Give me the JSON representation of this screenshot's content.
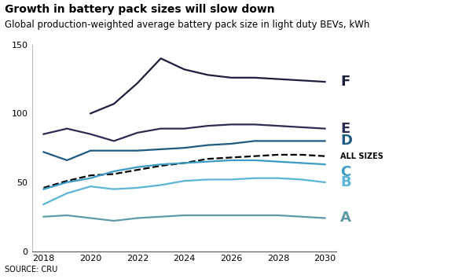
{
  "chart_data": {
    "type": "line",
    "title": "Growth in battery pack sizes will slow down",
    "subtitle": "Global production-weighted average battery pack size in light duty BEVs, kWh",
    "source": "SOURCE: CRU",
    "x": [
      2018,
      2019,
      2020,
      2021,
      2022,
      2023,
      2024,
      2025,
      2026,
      2027,
      2028,
      2029,
      2030
    ],
    "xlim": [
      2017.5,
      2030.5
    ],
    "xticks": [
      2018,
      2020,
      2022,
      2024,
      2026,
      2028,
      2030
    ],
    "ylim": [
      0,
      150
    ],
    "yticks": [
      0,
      50,
      100,
      150
    ],
    "grid": false,
    "series": [
      {
        "name": "F",
        "color": "#1c1f3b",
        "line_style": "solid",
        "values": [
          null,
          null,
          100,
          107,
          122,
          140,
          132,
          128,
          126,
          126,
          125,
          124,
          123
        ]
      },
      {
        "name": "E",
        "color": "#2b2d52",
        "line_style": "solid",
        "values": [
          85,
          89,
          85,
          80,
          86,
          89,
          89,
          91,
          92,
          92,
          91,
          90,
          89
        ]
      },
      {
        "name": "D",
        "color": "#1f5a80",
        "line_style": "solid",
        "values": [
          72,
          66,
          73,
          73,
          73,
          74,
          75,
          77,
          78,
          80,
          80,
          80,
          80
        ]
      },
      {
        "name": "ALL SIZES",
        "color": "#000000",
        "line_style": "dashed",
        "values": [
          46,
          51,
          55,
          56,
          59,
          62,
          64,
          67,
          68,
          69,
          70,
          70,
          69
        ]
      },
      {
        "name": "C",
        "color": "#3a9bc4",
        "line_style": "solid",
        "values": [
          45,
          50,
          53,
          58,
          61,
          63,
          64,
          65,
          66,
          66,
          65,
          64,
          63
        ]
      },
      {
        "name": "B",
        "color": "#5cb5d6",
        "line_style": "solid",
        "values": [
          34,
          42,
          47,
          45,
          46,
          48,
          51,
          52,
          52,
          53,
          53,
          52,
          50
        ]
      },
      {
        "name": "A",
        "color": "#5e9aa6",
        "line_style": "solid",
        "values": [
          25,
          26,
          24,
          22,
          24,
          25,
          26,
          26,
          26,
          26,
          26,
          25,
          24
        ]
      }
    ]
  }
}
